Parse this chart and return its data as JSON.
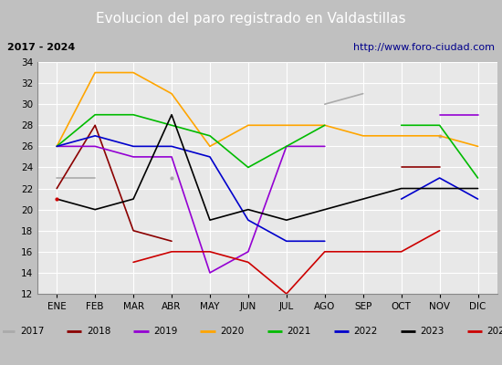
{
  "title": "Evolucion del paro registrado en Valdastillas",
  "subtitle_left": "2017 - 2024",
  "subtitle_right": "http://www.foro-ciudad.com",
  "months": [
    "ENE",
    "FEB",
    "MAR",
    "ABR",
    "MAY",
    "JUN",
    "JUL",
    "AGO",
    "SEP",
    "OCT",
    "NOV",
    "DIC"
  ],
  "ylim": [
    12,
    34
  ],
  "yticks": [
    12,
    14,
    16,
    18,
    20,
    22,
    24,
    26,
    28,
    30,
    32,
    34
  ],
  "series": {
    "2017": {
      "color": "#aaaaaa",
      "values": [
        23,
        23,
        null,
        23,
        null,
        null,
        null,
        30,
        31,
        null,
        27,
        null
      ]
    },
    "2018": {
      "color": "#8b0000",
      "values": [
        22,
        28,
        18,
        17,
        null,
        null,
        null,
        null,
        null,
        24,
        24,
        null
      ]
    },
    "2019": {
      "color": "#9400d3",
      "values": [
        26,
        26,
        25,
        25,
        14,
        16,
        26,
        26,
        null,
        null,
        29,
        29
      ]
    },
    "2020": {
      "color": "#ffa500",
      "values": [
        26,
        33,
        33,
        31,
        26,
        28,
        28,
        28,
        27,
        27,
        27,
        26
      ]
    },
    "2021": {
      "color": "#00bb00",
      "values": [
        26,
        29,
        29,
        28,
        27,
        24,
        26,
        28,
        null,
        28,
        28,
        23
      ]
    },
    "2022": {
      "color": "#0000cc",
      "values": [
        26,
        27,
        26,
        26,
        25,
        19,
        17,
        17,
        null,
        21,
        23,
        21
      ]
    },
    "2023": {
      "color": "#000000",
      "values": [
        21,
        20,
        21,
        29,
        19,
        20,
        19,
        20,
        21,
        22,
        22,
        22
      ]
    },
    "2024": {
      "color": "#cc0000",
      "values": [
        21,
        null,
        15,
        16,
        16,
        15,
        12,
        16,
        16,
        16,
        18,
        null
      ]
    }
  },
  "title_bg_color": "#4472c4",
  "title_fg_color": "#ffffff",
  "subtitle_bg_color": "#d4d4d4",
  "plot_bg_color": "#e8e8e8",
  "grid_color": "#ffffff",
  "legend_bg_color": "#f0f0f0",
  "title_fontsize": 11,
  "subtitle_fontsize": 8,
  "axis_label_fontsize": 7.5,
  "legend_fontsize": 7.5
}
